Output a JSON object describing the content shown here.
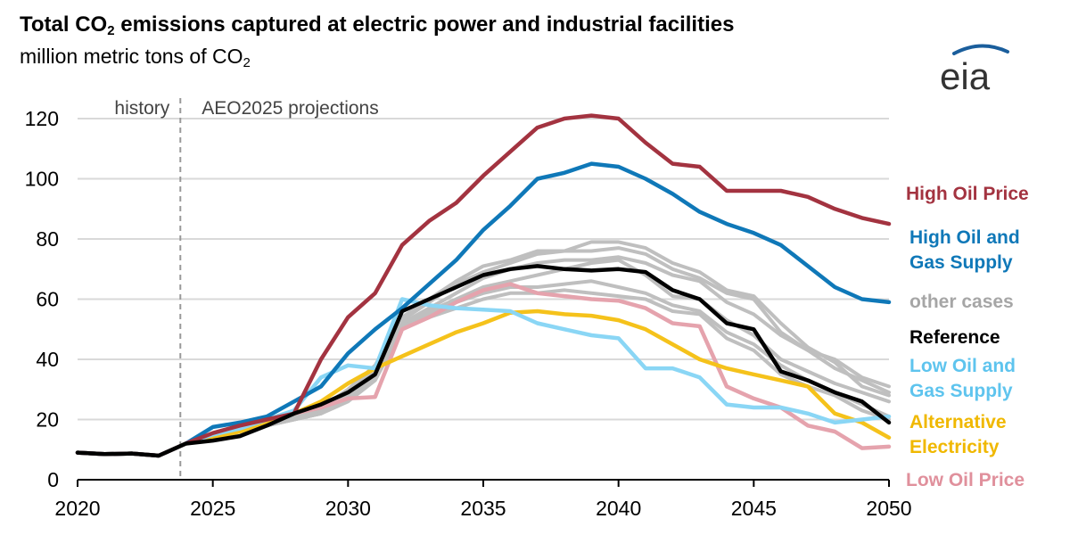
{
  "header": {
    "title_prefix": "Total CO",
    "title_sub": "2",
    "title_suffix": " emissions captured at electric power and industrial facilities",
    "subtitle_prefix": "million metric tons of CO",
    "subtitle_sub": "2",
    "logo_text": "eia"
  },
  "chart_data": {
    "type": "line",
    "title": "Total CO2 emissions captured at electric power and industrial facilities",
    "ylabel": "million metric tons of CO2",
    "xlim": [
      2020,
      2050
    ],
    "ylim": [
      0,
      120
    ],
    "x_ticks": [
      2020,
      2025,
      2030,
      2035,
      2040,
      2045,
      2050
    ],
    "y_ticks": [
      0,
      20,
      40,
      60,
      80,
      100,
      120
    ],
    "grid": true,
    "divider_year": 2023.8,
    "history_label": "history",
    "projection_label": "AEO2025 projections",
    "x": [
      2020,
      2021,
      2022,
      2023,
      2024,
      2025,
      2026,
      2027,
      2028,
      2029,
      2030,
      2031,
      2032,
      2033,
      2034,
      2035,
      2036,
      2037,
      2038,
      2039,
      2040,
      2041,
      2042,
      2043,
      2044,
      2045,
      2046,
      2047,
      2048,
      2049,
      2050
    ],
    "other_cases_label": "other cases",
    "other_cases_color": "#bfbfbf",
    "other_cases": [
      [
        9,
        8.5,
        8.7,
        8,
        12,
        15,
        17,
        19,
        21,
        24,
        30,
        38,
        54,
        60,
        66,
        71,
        73,
        76,
        76,
        79,
        79,
        77,
        72,
        69,
        63,
        61,
        52,
        44,
        39,
        31,
        28
      ],
      [
        9,
        8.5,
        8.7,
        8,
        12,
        15,
        17,
        19,
        21,
        23,
        29,
        37,
        53,
        59,
        65,
        69,
        72,
        75,
        76,
        76,
        77,
        75,
        70,
        67,
        62,
        60,
        49,
        43,
        37,
        33,
        29
      ],
      [
        9,
        8.5,
        8.7,
        8,
        12,
        15,
        17,
        19,
        21,
        23,
        28,
        36,
        52,
        57,
        62,
        67,
        70,
        72,
        73,
        73,
        74,
        72,
        68,
        66,
        59,
        55,
        48,
        43,
        40,
        34,
        31
      ],
      [
        9,
        8.5,
        8.7,
        8,
        12,
        14,
        16,
        18,
        20,
        22,
        27,
        34,
        51,
        55,
        59,
        62,
        64,
        64,
        65,
        66,
        64,
        62,
        58,
        56,
        49,
        45,
        38,
        33,
        29,
        25,
        21
      ],
      [
        9,
        8.5,
        8.7,
        8,
        12,
        14,
        16,
        18,
        20,
        22,
        26,
        33,
        50,
        54,
        57,
        60,
        62,
        62,
        63,
        62,
        61,
        60,
        56,
        55,
        47,
        43,
        35,
        31,
        28,
        23,
        20
      ],
      [
        9,
        8.5,
        8.7,
        8,
        12,
        14,
        16,
        18,
        20,
        22,
        27,
        34,
        52,
        56,
        60,
        64,
        66,
        68,
        70,
        72,
        73,
        68,
        61,
        60,
        53,
        48,
        40,
        36,
        32,
        29,
        26
      ]
    ],
    "series": [
      {
        "name": "High Oil Price",
        "color": "#a33340",
        "values": [
          9,
          8.5,
          8.7,
          8,
          12,
          15.5,
          18,
          20,
          22,
          40,
          54,
          62,
          78,
          86,
          92,
          101,
          109,
          117,
          120,
          121,
          120,
          112,
          105,
          104,
          96,
          96,
          96,
          94,
          90,
          87,
          85
        ]
      },
      {
        "name": "High Oil and Gas Supply",
        "color": "#0f78b8",
        "values": [
          9,
          8.5,
          8.7,
          8,
          12,
          17.5,
          19,
          21,
          26,
          31,
          42,
          50,
          57,
          65,
          73,
          83,
          91,
          100,
          102,
          105,
          104,
          100,
          95,
          89,
          85,
          82,
          78,
          71,
          64,
          60,
          59
        ]
      },
      {
        "name": "Reference",
        "color": "#000000",
        "values": [
          9,
          8.5,
          8.7,
          8,
          12,
          13,
          14.5,
          18,
          22,
          25,
          29,
          35,
          56,
          60,
          64,
          68,
          70,
          71,
          70,
          69.5,
          70,
          69,
          63,
          60,
          52,
          50,
          36,
          33,
          29,
          26,
          19
        ]
      },
      {
        "name": "Low Oil and Gas Supply",
        "color": "#8ad6f5",
        "values": [
          9,
          8.5,
          8.7,
          8,
          12,
          15,
          17,
          20,
          23,
          34,
          38,
          37,
          60,
          58,
          57,
          56.5,
          56,
          52,
          50,
          48,
          47,
          37,
          37,
          34,
          25,
          24,
          24,
          22,
          19,
          20,
          21
        ]
      },
      {
        "name": "Alternative Electricity",
        "color": "#f5c21b",
        "values": [
          9,
          8.5,
          8.7,
          8,
          12,
          14,
          16,
          19,
          22,
          26,
          32,
          37,
          41,
          45,
          49,
          52,
          55.5,
          56,
          55,
          54.5,
          53,
          50,
          45,
          40,
          37,
          35,
          33,
          31,
          22,
          19,
          14
        ]
      },
      {
        "name": "Low Oil Price",
        "color": "#e5a3ad",
        "values": [
          9,
          8.5,
          8.7,
          8,
          12,
          15,
          18,
          20,
          22,
          24,
          27,
          27.5,
          50,
          54,
          59,
          63,
          65,
          62,
          61,
          60,
          59.5,
          57,
          52,
          51,
          31,
          27,
          24,
          18,
          16,
          10.5,
          11
        ]
      }
    ],
    "legend_labels": {
      "high_oil_price": "High Oil Price",
      "high_oil_gas_1": "High Oil and",
      "high_oil_gas_2": "Gas Supply",
      "other_cases": "other cases",
      "reference": "Reference",
      "low_oil_gas_1": "Low Oil and",
      "low_oil_gas_2": "Gas Supply",
      "alt_elec_1": "Alternative",
      "alt_elec_2": "Electricity",
      "low_oil_price": "Low Oil Price"
    }
  }
}
